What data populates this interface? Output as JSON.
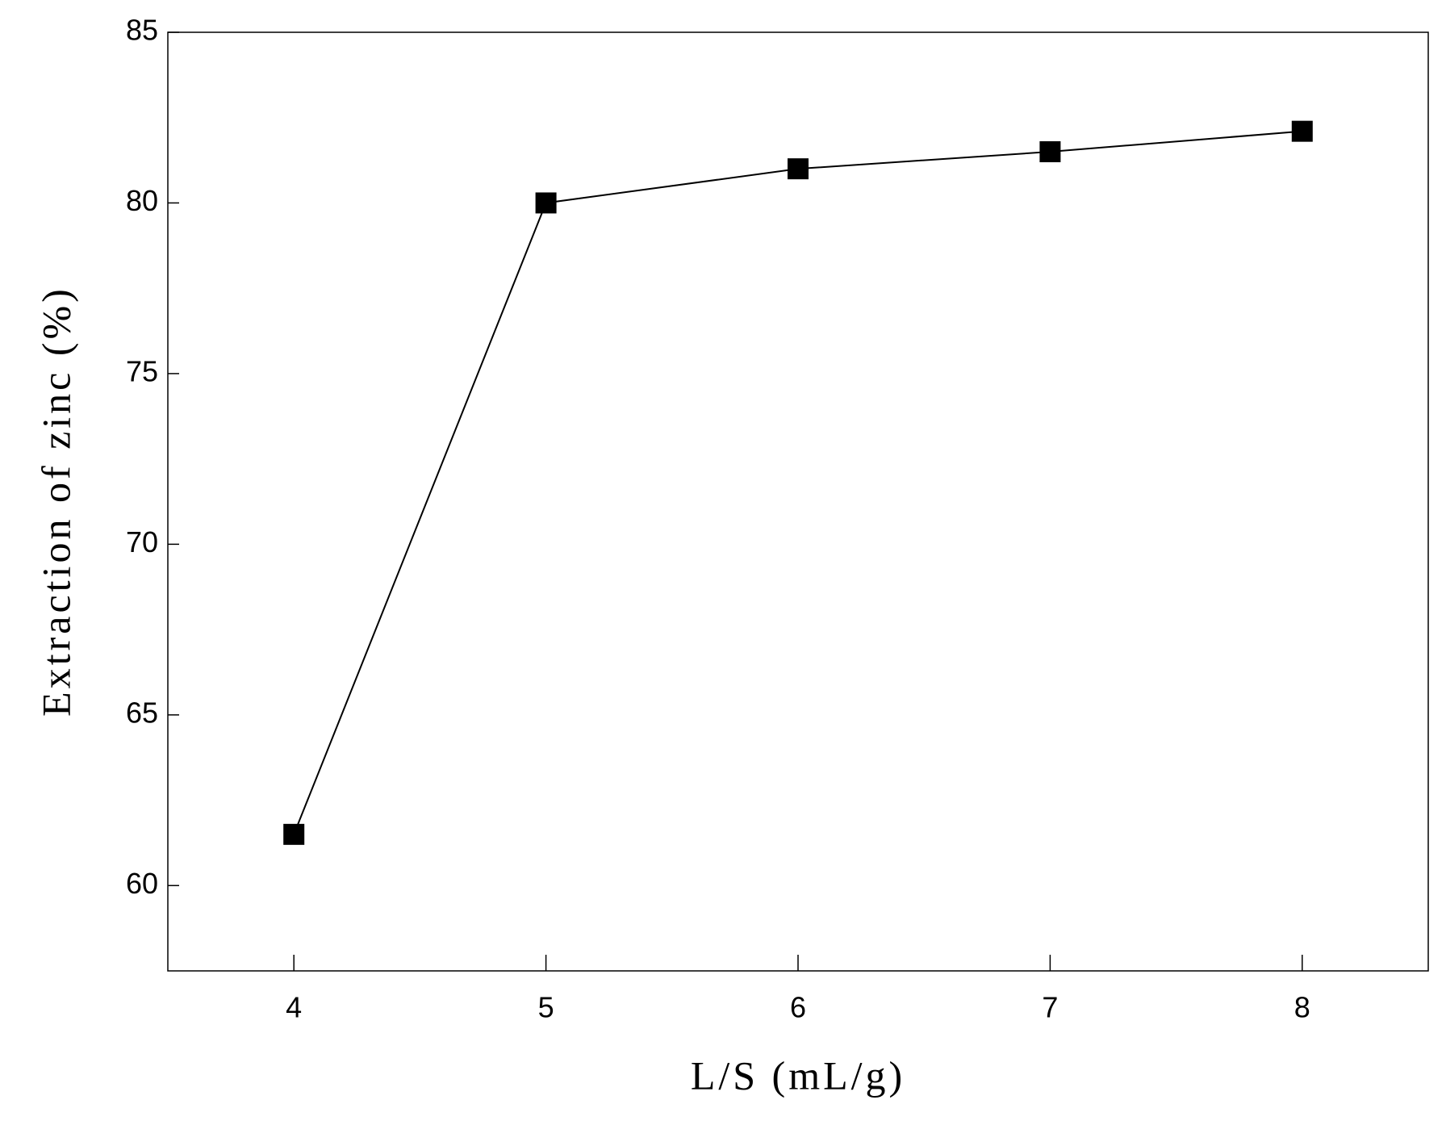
{
  "chart_data": {
    "type": "line",
    "x_label": "L/S (mL/g)",
    "y_label": "Extraction of zinc (%)",
    "x": [
      4,
      5,
      6,
      7,
      8
    ],
    "values": [
      61.5,
      80,
      81,
      81.5,
      82.1
    ],
    "color": "#000000",
    "marker": "square",
    "xlim": [
      3.5,
      8.5
    ],
    "ylim": [
      57.5,
      85
    ],
    "xticks": [
      4,
      5,
      6,
      7,
      8
    ],
    "yticks": [
      60,
      65,
      70,
      75,
      80,
      85
    ]
  }
}
